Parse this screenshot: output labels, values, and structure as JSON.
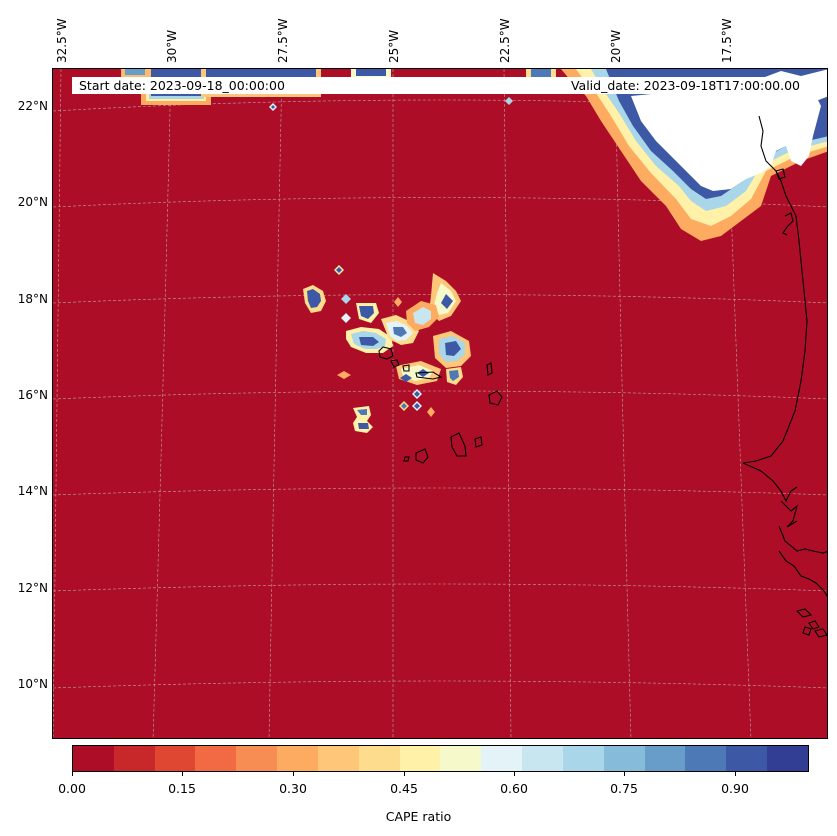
{
  "header": {
    "start_date": "Start date: 2023-09-18_00:00:00",
    "valid_date": "Valid_date: 2023-09-18T17:00:00.00"
  },
  "map": {
    "lon_labels": [
      "32.5°W",
      "30°W",
      "27.5°W",
      "25°W",
      "22.5°W",
      "20°W",
      "17.5°W"
    ],
    "lat_labels": [
      "22°N",
      "20°N",
      "18°N",
      "16°N",
      "14°N",
      "12°N",
      "10°N"
    ],
    "background_value": 0.0,
    "no_data_region": "white"
  },
  "colorbar": {
    "label": "CAPE ratio",
    "tick_labels": [
      "0.00",
      "0.15",
      "0.30",
      "0.45",
      "0.60",
      "0.75",
      "0.90"
    ],
    "colors": [
      "#ad0d26",
      "#c9282b",
      "#e04732",
      "#f16a43",
      "#f78d52",
      "#fcab60",
      "#fec678",
      "#fedc8d",
      "#fff1a8",
      "#f6faca",
      "#e3f3f7",
      "#c8e6f0",
      "#a9d6e8",
      "#86bcda",
      "#689dca",
      "#4d79b6",
      "#3d58a5",
      "#313e94"
    ]
  }
}
